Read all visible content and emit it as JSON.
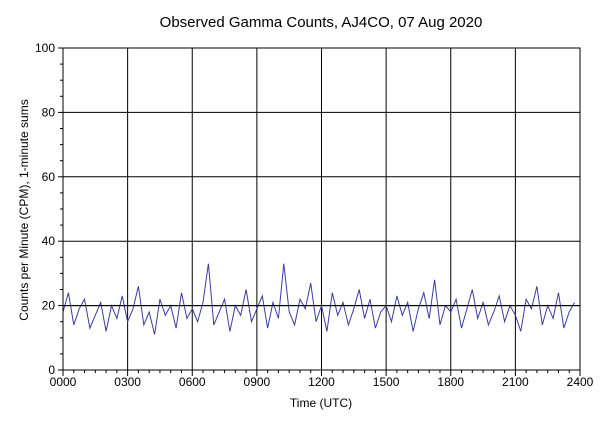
{
  "chart_data": {
    "type": "line",
    "title": "Observed Gamma Counts, AJ4CO, 07 Aug 2020",
    "xlabel": "Time (UTC)",
    "ylabel": "Counts per Minute (CPM), 1-minute sums",
    "x_ticks": [
      "0000",
      "0300",
      "0600",
      "0900",
      "1200",
      "1500",
      "1800",
      "2100",
      "2400"
    ],
    "y_ticks": [
      "0",
      "20",
      "40",
      "60",
      "80",
      "100"
    ],
    "xlim": [
      0,
      24
    ],
    "ylim": [
      0,
      100
    ],
    "x_unit": "hours UTC",
    "grid": true,
    "reference_line": 20,
    "line_color": "#3c3ca0",
    "series": [
      {
        "x": [
          0,
          0.25,
          0.5,
          0.75,
          1,
          1.25,
          1.5,
          1.75,
          2,
          2.25,
          2.5,
          2.75,
          3,
          3.25,
          3.5,
          3.75,
          4,
          4.25,
          4.5,
          4.75,
          5,
          5.25,
          5.5,
          5.75,
          6,
          6.25,
          6.5,
          6.75,
          7,
          7.25,
          7.5,
          7.75,
          8,
          8.25,
          8.5,
          8.75,
          9,
          9.25,
          9.5,
          9.75,
          10,
          10.25,
          10.5,
          10.75,
          11,
          11.25,
          11.5,
          11.75,
          12,
          12.25,
          12.5,
          12.75,
          13,
          13.25,
          13.5,
          13.75,
          14,
          14.25,
          14.5,
          14.75,
          15,
          15.25,
          15.5,
          15.75,
          16,
          16.25,
          16.5,
          16.75,
          17,
          17.25,
          17.5,
          17.75,
          18,
          18.25,
          18.5,
          18.75,
          19,
          19.25,
          19.5,
          19.75,
          20,
          20.25,
          20.5,
          20.75,
          21,
          21.25,
          21.5,
          21.75,
          22,
          22.25,
          22.5,
          22.75,
          23,
          23.25,
          23.5,
          23.75
        ],
        "y": [
          18,
          24,
          14,
          19,
          22,
          13,
          17,
          21,
          12,
          20,
          16,
          23,
          15,
          19,
          26,
          14,
          18,
          11,
          22,
          17,
          20,
          13,
          24,
          16,
          19,
          15,
          21,
          33,
          14,
          18,
          22,
          12,
          20,
          17,
          25,
          15,
          19,
          23,
          13,
          21,
          16,
          33,
          18,
          14,
          22,
          19,
          27,
          15,
          20,
          12,
          24,
          17,
          21,
          14,
          19,
          25,
          16,
          22,
          13,
          18,
          20,
          15,
          23,
          17,
          21,
          12,
          19,
          24,
          16,
          28,
          14,
          20,
          18,
          22,
          13,
          19,
          25,
          16,
          21,
          14,
          18,
          23,
          15,
          20,
          17,
          12,
          22,
          19,
          26,
          14,
          20,
          16,
          24,
          13,
          18,
          21
        ]
      }
    ]
  }
}
